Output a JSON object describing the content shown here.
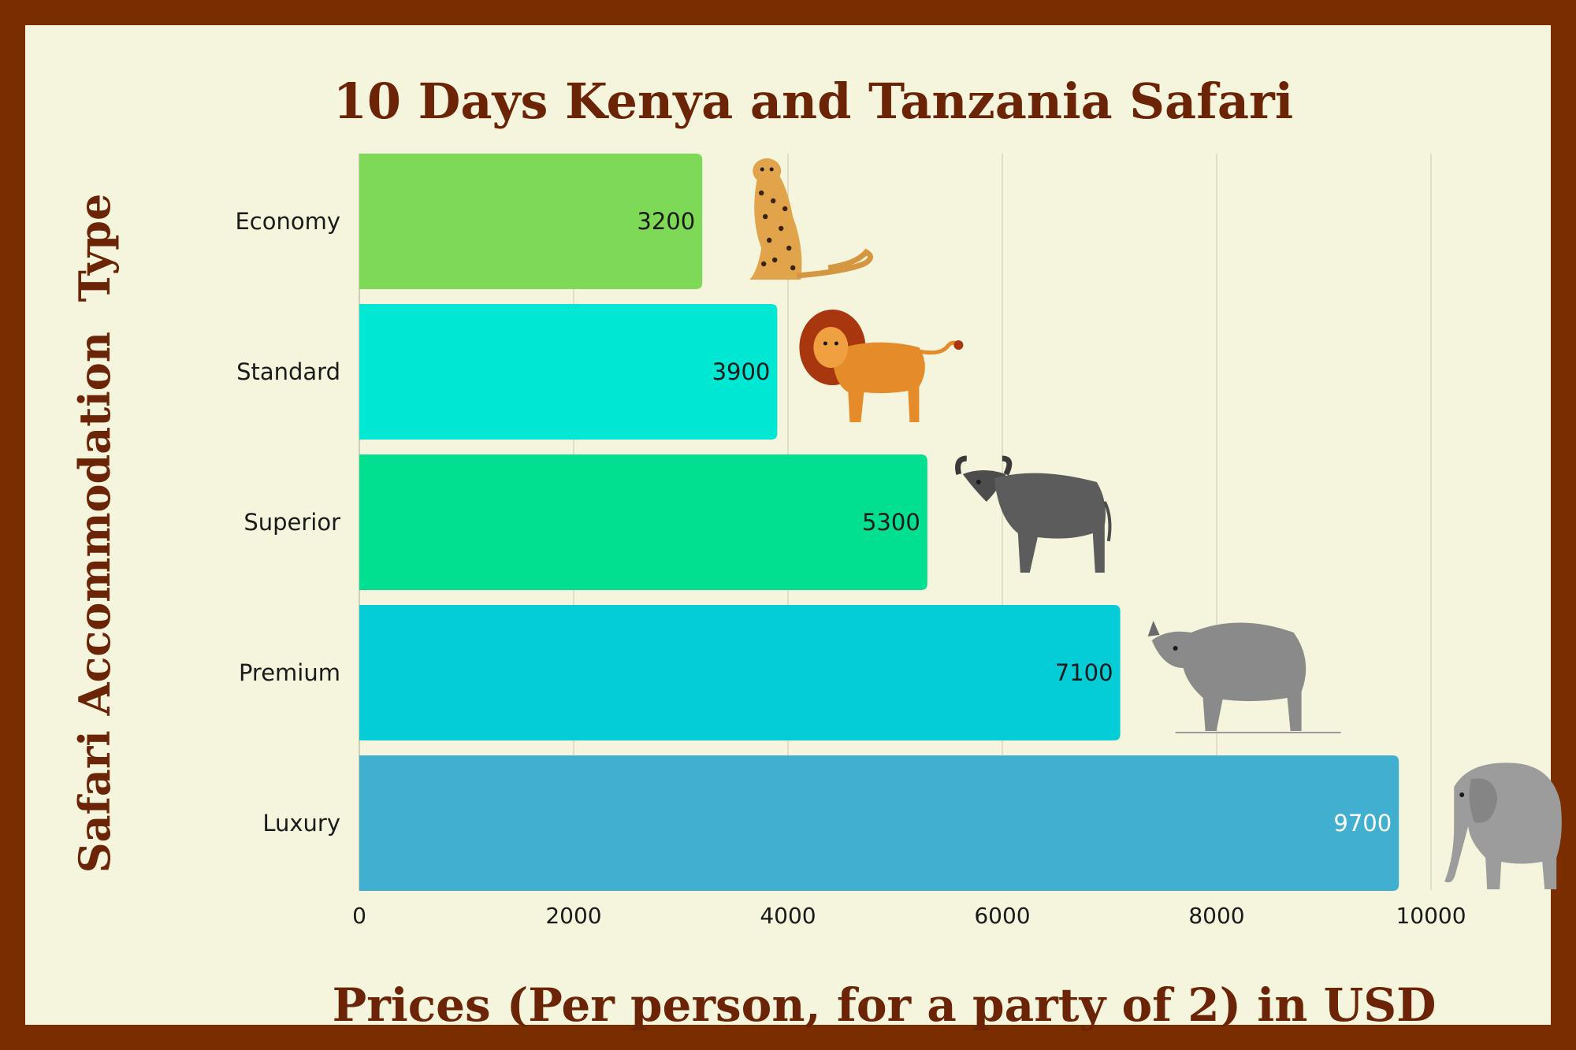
{
  "chart_data": {
    "type": "bar",
    "orientation": "horizontal",
    "title": "10 Days Kenya and Tanzania Safari",
    "xlabel": "Prices (Per person, for a party of 2) in USD",
    "ylabel": "Safari Accommodation  Type",
    "categories": [
      "Economy",
      "Standard",
      "Superior",
      "Premium",
      "Luxury"
    ],
    "values": [
      3200,
      3900,
      5300,
      7100,
      9700
    ],
    "xlim": [
      0,
      10000
    ],
    "xticks": [
      0,
      2000,
      4000,
      6000,
      8000,
      10000
    ],
    "grid": "vertical",
    "legend": "none",
    "bar_colors": [
      "#7ed957",
      "#00e8d4",
      "#00e090",
      "#04cdd7",
      "#41b0d0"
    ],
    "label_colors": [
      "#1a1a1a",
      "#1a1a1a",
      "#1a1a1a",
      "#1a1a1a",
      "#ffffff"
    ],
    "animals": [
      "cheetah-icon",
      "lion-icon",
      "buffalo-icon",
      "rhino-icon",
      "elephant-icon"
    ]
  },
  "colors": {
    "frame": "#7a2e00",
    "background": "#f5f4dc",
    "title": "#6b2406",
    "grid": "#d9d6c2"
  }
}
